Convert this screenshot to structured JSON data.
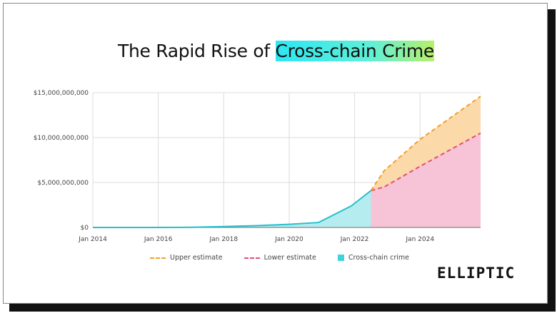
{
  "title_prefix": "The Rapid Rise of ",
  "title_highlight": "Cross-chain Crime",
  "logo": "ELLIPTIC",
  "chart_data": {
    "type": "area",
    "title": "The Rapid Rise of Cross-chain Crime",
    "xlabel": "",
    "ylabel": "",
    "xlim": [
      2014,
      2025.85
    ],
    "ylim": [
      0,
      15000000000
    ],
    "grid": true,
    "x_ticks": [
      {
        "v": 2014,
        "label": "Jan 2014"
      },
      {
        "v": 2016,
        "label": "Jan 2016"
      },
      {
        "v": 2018,
        "label": "Jan 2018"
      },
      {
        "v": 2020,
        "label": "Jan 2020"
      },
      {
        "v": 2022,
        "label": "Jan 2022"
      },
      {
        "v": 2024,
        "label": "Jan 2024"
      }
    ],
    "y_ticks": [
      {
        "v": 0,
        "label": "$0"
      },
      {
        "v": 5000000000,
        "label": "$5,000,000,000"
      },
      {
        "v": 10000000000,
        "label": "$10,000,000,000"
      },
      {
        "v": 15000000000,
        "label": "$15,000,000,000"
      }
    ],
    "legend_position": "bottom",
    "series": [
      {
        "name": "Upper estimate",
        "color": "#f0a030",
        "fill": "#fbd9a8",
        "dashed": true,
        "points": [
          [
            2022.5,
            4100000000
          ],
          [
            2022.9,
            6300000000
          ],
          [
            2024,
            9800000000
          ],
          [
            2025.85,
            14600000000
          ]
        ]
      },
      {
        "name": "Lower estimate",
        "color": "#e0507a",
        "fill": "#f7c3d6",
        "dashed": true,
        "points": [
          [
            2022.5,
            4100000000
          ],
          [
            2022.9,
            4500000000
          ],
          [
            2024,
            6800000000
          ],
          [
            2025.85,
            10500000000
          ]
        ]
      },
      {
        "name": "Cross-chain crime",
        "color": "#26c0cc",
        "fill": "#b4ecf0",
        "dashed": false,
        "points": [
          [
            2014,
            0
          ],
          [
            2016,
            0
          ],
          [
            2017,
            20000000
          ],
          [
            2018,
            100000000
          ],
          [
            2019,
            200000000
          ],
          [
            2020,
            350000000
          ],
          [
            2020.9,
            550000000
          ],
          [
            2021.9,
            2400000000
          ],
          [
            2022.5,
            4100000000
          ]
        ]
      }
    ]
  }
}
